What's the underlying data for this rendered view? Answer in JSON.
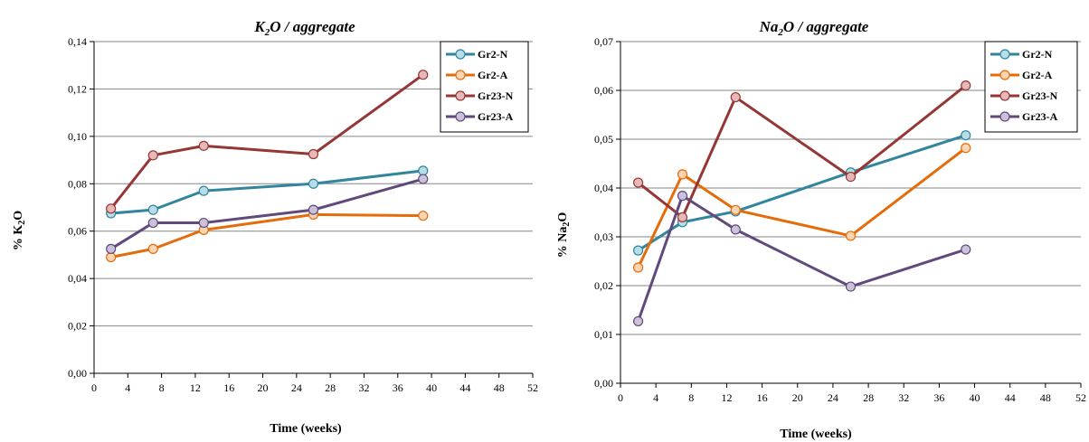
{
  "chart_data": [
    {
      "type": "line",
      "title_main": "K",
      "title_sub": "2",
      "title_rest": "O / aggregate",
      "xlabel": "Time (weeks)",
      "ylabel_main": "% K",
      "ylabel_sub": "2",
      "ylabel_rest": "O",
      "xlim": [
        0,
        52
      ],
      "ylim": [
        0,
        0.14
      ],
      "xticks": [
        0,
        4,
        8,
        12,
        16,
        20,
        24,
        28,
        32,
        36,
        40,
        44,
        48,
        52
      ],
      "yticks": [
        "0,00",
        "0,02",
        "0,04",
        "0,06",
        "0,08",
        "0,10",
        "0,12",
        "0,14"
      ],
      "grid": "horizontal",
      "legend": "top-right",
      "series": [
        {
          "name": "Gr2-N",
          "color": "#31859c",
          "marker": "#b7dee8",
          "x": [
            2,
            7,
            13,
            26,
            39
          ],
          "y": [
            0.0675,
            0.069,
            0.077,
            0.08,
            0.0855
          ]
        },
        {
          "name": "Gr2-A",
          "color": "#e46c0a",
          "marker": "#fcd5b4",
          "x": [
            2,
            7,
            13,
            26,
            39
          ],
          "y": [
            0.049,
            0.0525,
            0.0605,
            0.067,
            0.0665
          ]
        },
        {
          "name": "Gr23-N",
          "color": "#953735",
          "marker": "#e6b9b8",
          "x": [
            2,
            7,
            13,
            26,
            39
          ],
          "y": [
            0.0695,
            0.092,
            0.096,
            0.0925,
            0.126
          ]
        },
        {
          "name": "Gr23-A",
          "color": "#604a7b",
          "marker": "#ccc1da",
          "x": [
            2,
            7,
            13,
            26,
            39
          ],
          "y": [
            0.0525,
            0.0635,
            0.0635,
            0.069,
            0.082
          ]
        }
      ]
    },
    {
      "type": "line",
      "title_main": "Na",
      "title_sub": "2",
      "title_rest": "O / aggregate",
      "xlabel": "Time (weeks)",
      "ylabel_main": "% Na",
      "ylabel_sub": "2",
      "ylabel_rest": "O",
      "xlim": [
        0,
        52
      ],
      "ylim": [
        0,
        0.07
      ],
      "xticks": [
        0,
        4,
        8,
        12,
        16,
        20,
        24,
        28,
        32,
        36,
        40,
        44,
        48,
        52
      ],
      "yticks": [
        "0,00",
        "0,01",
        "0,02",
        "0,03",
        "0,04",
        "0,05",
        "0,06",
        "0,07"
      ],
      "grid": "horizontal",
      "legend": "top-right",
      "series": [
        {
          "name": "Gr2-N",
          "color": "#31859c",
          "marker": "#b7dee8",
          "x": [
            2,
            7,
            13,
            26,
            39
          ],
          "y": [
            0.0272,
            0.033,
            0.0352,
            0.0432,
            0.0508
          ]
        },
        {
          "name": "Gr2-A",
          "color": "#e46c0a",
          "marker": "#fcd5b4",
          "x": [
            2,
            7,
            13,
            26,
            39
          ],
          "y": [
            0.0237,
            0.0428,
            0.0355,
            0.0302,
            0.0482
          ]
        },
        {
          "name": "Gr23-N",
          "color": "#953735",
          "marker": "#e6b9b8",
          "x": [
            2,
            7,
            13,
            26,
            39
          ],
          "y": [
            0.0411,
            0.034,
            0.0586,
            0.0423,
            0.061
          ]
        },
        {
          "name": "Gr23-A",
          "color": "#604a7b",
          "marker": "#ccc1da",
          "x": [
            2,
            7,
            13,
            26,
            39
          ],
          "y": [
            0.0127,
            0.0384,
            0.0315,
            0.0198,
            0.0274
          ]
        }
      ]
    }
  ]
}
